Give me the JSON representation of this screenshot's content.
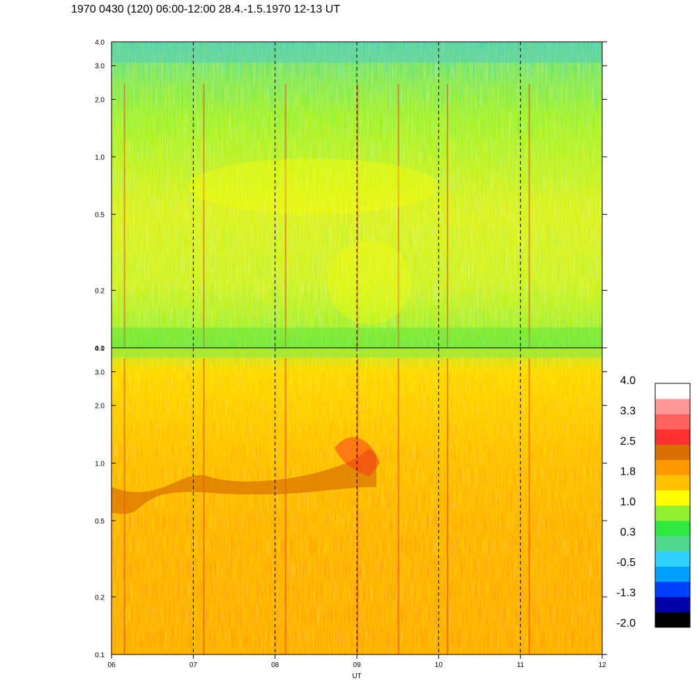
{
  "title": "1970 0430 (120) 06:00-12:00 28.4.-1.5.1970  12-13 UT",
  "chart_data": [
    {
      "type": "heatmap",
      "panel": "top",
      "x_range": [
        6,
        12
      ],
      "y_range": [
        0.1,
        4.0
      ],
      "y_scale": "log",
      "y_ticks": [
        "0.1",
        "0.2",
        "0.5",
        "1.0",
        "2.0",
        "3.0",
        "4.0"
      ],
      "x_ticks": [],
      "value_estimate": 0.5,
      "dashed_hours": [
        7,
        8,
        9,
        10,
        11
      ]
    },
    {
      "type": "heatmap",
      "panel": "bottom",
      "x_range": [
        6,
        12
      ],
      "y_range": [
        0.1,
        4.0
      ],
      "y_scale": "log",
      "y_ticks": [
        "0.1",
        "0.2",
        "0.5",
        "1.0",
        "2.0",
        "3.0",
        "4.0"
      ],
      "x_ticks": [
        "06",
        "07",
        "08",
        "09",
        "10",
        "11",
        "12"
      ],
      "xlabel": "UT",
      "value_estimate": 1.8,
      "dashed_hours": [
        7,
        8,
        9,
        10,
        11
      ]
    }
  ],
  "colorbar": {
    "colors": [
      "#000000",
      "#0000a8",
      "#0040ff",
      "#00a0ff",
      "#30d0ff",
      "#50d890",
      "#30e840",
      "#90f030",
      "#ffff00",
      "#ffc000",
      "#ff9800",
      "#d87000",
      "#ff3030",
      "#ff6060",
      "#ff9898",
      "#ffffff"
    ],
    "labels": [
      "4.0",
      "3.3",
      "2.5",
      "1.8",
      "1.0",
      "0.3",
      "-0.5",
      "-1.3",
      "-2.0"
    ]
  }
}
